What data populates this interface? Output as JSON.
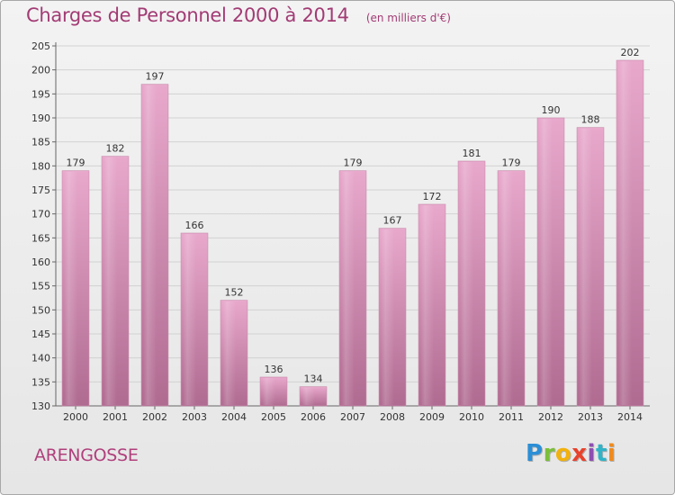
{
  "header": {
    "title": "Charges de Personnel 2000 à 2014",
    "unit": "(en milliers d'€)"
  },
  "footer": {
    "city": "ARENGOSSE",
    "logo_letters": [
      "P",
      "r",
      "o",
      "x",
      "i",
      "t",
      "i"
    ],
    "logo_colors": [
      "#2b8fd6",
      "#7bbf3a",
      "#f2b10c",
      "#e8412c",
      "#8d4fb0",
      "#2fb4c8",
      "#f08a1c"
    ]
  },
  "chart_data": {
    "type": "bar",
    "title": "Charges de Personnel 2000 à 2014",
    "subtitle": "(en milliers d'€)",
    "categories": [
      "2000",
      "2001",
      "2002",
      "2003",
      "2004",
      "2005",
      "2006",
      "2007",
      "2008",
      "2009",
      "2010",
      "2011",
      "2012",
      "2013",
      "2014"
    ],
    "values": [
      179,
      182,
      197,
      166,
      152,
      136,
      134,
      179,
      167,
      172,
      181,
      179,
      190,
      188,
      202
    ],
    "value_labels": [
      "179",
      "182",
      "197",
      "166",
      "152",
      "136",
      "134",
      "179",
      "167",
      "172",
      "181",
      "179",
      "190",
      "188",
      "202"
    ],
    "ylim": [
      130,
      205
    ],
    "yticks": [
      "130",
      "135",
      "140",
      "145",
      "150",
      "155",
      "160",
      "165",
      "170",
      "175",
      "180",
      "185",
      "190",
      "195",
      "200",
      "205"
    ],
    "grid": true,
    "bar_color_top": "#e8a8cc",
    "bar_color_bottom": "#b06b91"
  }
}
